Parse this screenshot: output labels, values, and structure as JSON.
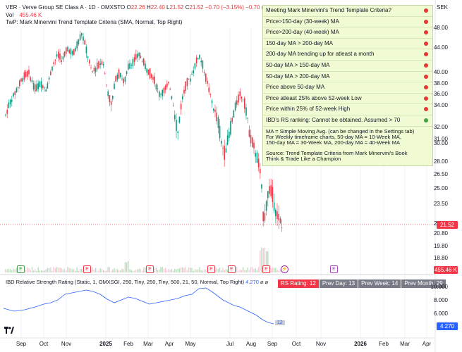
{
  "header": {
    "symbol_line": "VER · Verve Group SE Class A · 1D · OMXSTO",
    "o_label": "O",
    "o_value": "22.26",
    "h_label": "H",
    "h_value": "22.40",
    "l_label": "L",
    "l_value": "21.52",
    "c_label": "C",
    "c_value": "21.52",
    "change": "−0.70 (−3.15%)",
    "change2": "−0.70 (−3.15%)",
    "vol_label": "Vol",
    "vol_value": "455.46 K",
    "indicator_line": "TwP: Mark Minervini Trend Template Criteria (SMA, Normal, Top Right)"
  },
  "currency": "SEK",
  "price_axis": [
    "48.00",
    "44.00",
    "40.00",
    "38.00",
    "36.00",
    "34.00",
    "32.00",
    "31.00",
    "30.00",
    "28.00",
    "26.50",
    "25.00",
    "23.50",
    "22.00",
    "20.80",
    "19.80",
    "18.80"
  ],
  "last_price_tag": "21.52",
  "volume_tag": "455.46 K",
  "criteria": {
    "rows": [
      {
        "label": "Meeting Mark Minervini's Trend Template Criteria?",
        "status": "red"
      },
      {
        "label": "Price>150-day (30-week) MA",
        "status": "red"
      },
      {
        "label": "Price>200-day (40-week) MA",
        "status": "red"
      },
      {
        "label": "150-day MA > 200-day MA",
        "status": "red"
      },
      {
        "label": "200-day MA trending up for atleast a month",
        "status": "red"
      },
      {
        "label": "50-day MA > 150-day MA",
        "status": "red"
      },
      {
        "label": "50-day MA > 200-day MA",
        "status": "red"
      },
      {
        "label": "Price above 50-day MA",
        "status": "red"
      },
      {
        "label": "Price atleast 25% above 52-week Low",
        "status": "red"
      },
      {
        "label": "Price within 25% of 52-week High",
        "status": "red"
      },
      {
        "label": "IBD's RS ranking: Cannot be obtained. Assumed > 70",
        "status": "green"
      }
    ],
    "notes": [
      "MA = Simple Moving Avg. (can be changed in the Settings tab)",
      "For Weekly timeframe charts, 50-day MA = 10-Week MA,",
      "150-day MA = 30-Week MA, 200-day MA = 40-Week MA"
    ],
    "source": [
      "Source: Trend Template Criteria from Mark Minervini's Book",
      "Think & Trade Like a Champion"
    ],
    "colors": {
      "red": "#e53935",
      "green": "#43a047"
    }
  },
  "rs_pane": {
    "title": "IBD Relative Strength Rating (Static, 1, OMXSGI, 250, Tiny, 250, Tiny, 500, 21, 50, Normal, Top Right)",
    "value": "4.270",
    "axis": [
      "10.000",
      "8.000",
      "6.000"
    ],
    "tag": "4.270",
    "line_label": "12",
    "banner": [
      "RS Rating: 12",
      "Prev Day: 13",
      "Prev Week: 14",
      "Prev Month: 29"
    ]
  },
  "time_axis": [
    "Sep",
    "Oct",
    "Nov",
    "2025",
    "Feb",
    "Mar",
    "Apr",
    "May",
    "Jul",
    "Aug",
    "Sep",
    "Oct",
    "Nov",
    "2026",
    "Feb",
    "Mar",
    "Apr"
  ],
  "events": [
    {
      "glyph": "E",
      "kind": "green"
    },
    {
      "glyph": "E",
      "kind": "red"
    },
    {
      "glyph": "E",
      "kind": "red"
    },
    {
      "glyph": "E",
      "kind": "red"
    },
    {
      "glyph": "E",
      "kind": "red"
    },
    {
      "glyph": "E",
      "kind": "red"
    },
    {
      "glyph": "⚡",
      "kind": "purple"
    },
    {
      "glyph": "E",
      "kind": "violet"
    }
  ],
  "colors": {
    "up": "#089981",
    "down": "#f23645",
    "rs_line": "#2962ff",
    "grid": "#f0f3fa"
  },
  "candles_seed": 7
}
